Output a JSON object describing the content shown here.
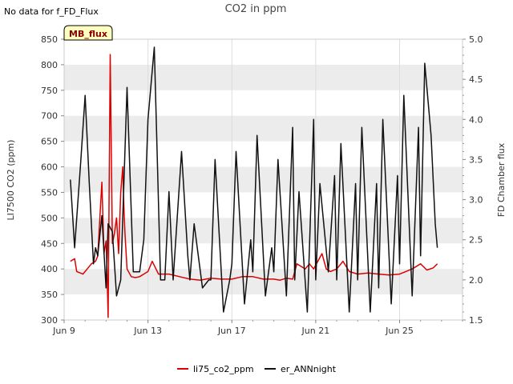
{
  "top_note": "No data for f_FD_Flux",
  "badge_label": "MB_flux",
  "colors": {
    "li75": "#dd0000",
    "er": "#111111",
    "band": "#ececec",
    "badge_fill": "#ffffc0"
  },
  "chart_data": {
    "type": "line",
    "title": "CO2 in ppm",
    "ylabel": "LI7500 CO2 (ppm)",
    "y2label": "FD Chamber flux",
    "ylim": [
      300,
      850
    ],
    "y_ticks": [
      300,
      350,
      400,
      450,
      500,
      550,
      600,
      650,
      700,
      750,
      800,
      850
    ],
    "y2lim": [
      1.5,
      5.0
    ],
    "y2_ticks": [
      "1.5",
      "2.0",
      "2.5",
      "3.0",
      "3.5",
      "4.0",
      "4.5",
      "5.0"
    ],
    "xlim": [
      9,
      28
    ],
    "x_ticks": [
      {
        "x": 9,
        "label": "Jun 9"
      },
      {
        "x": 13,
        "label": "Jun 13"
      },
      {
        "x": 17,
        "label": "Jun 17"
      },
      {
        "x": 21,
        "label": "Jun 21"
      },
      {
        "x": 25,
        "label": "Jun 25"
      }
    ],
    "legend_position": "bottom-center",
    "series": [
      {
        "name": "li75_co2_ppm",
        "axis": "left",
        "x": [
          9.3,
          9.5,
          9.6,
          9.9,
          10.1,
          10.3,
          10.5,
          10.6,
          10.8,
          10.9,
          11.0,
          11.05,
          11.1,
          11.2,
          11.3,
          11.4,
          11.5,
          11.6,
          11.7,
          11.8,
          11.85,
          11.9,
          12.0,
          12.2,
          12.4,
          12.6,
          12.8,
          13.0,
          13.2,
          13.5,
          14.0,
          14.5,
          15.0,
          15.5,
          16.0,
          16.5,
          17.0,
          17.5,
          18.0,
          18.5,
          19.0,
          19.3,
          19.6,
          19.9,
          20.1,
          20.3,
          20.5,
          20.7,
          20.9,
          21.1,
          21.3,
          21.5,
          21.7,
          22.0,
          22.3,
          22.6,
          23.0,
          23.5,
          24.0,
          24.5,
          25.0,
          25.3,
          25.6,
          26.0,
          26.3,
          26.6,
          26.8
        ],
        "y": [
          415,
          420,
          395,
          390,
          400,
          410,
          415,
          425,
          570,
          430,
          455,
          390,
          305,
          820,
          450,
          470,
          500,
          430,
          550,
          600,
          520,
          470,
          400,
          385,
          383,
          385,
          390,
          395,
          415,
          390,
          390,
          385,
          380,
          378,
          382,
          380,
          380,
          385,
          385,
          380,
          380,
          378,
          382,
          380,
          410,
          405,
          400,
          410,
          400,
          415,
          430,
          400,
          395,
          400,
          415,
          395,
          390,
          392,
          390,
          388,
          390,
          395,
          400,
          410,
          398,
          402,
          410
        ]
      },
      {
        "name": "er_ANNnight",
        "axis": "right",
        "x": [
          9.3,
          9.5,
          9.8,
          10.0,
          10.2,
          10.4,
          10.5,
          10.6,
          10.8,
          11.0,
          11.1,
          11.3,
          11.5,
          11.7,
          12.0,
          12.3,
          12.6,
          12.8,
          13.0,
          13.3,
          13.6,
          13.8,
          14.0,
          14.2,
          14.6,
          14.9,
          15.0,
          15.2,
          15.6,
          15.9,
          16.0,
          16.2,
          16.6,
          16.9,
          17.0,
          17.2,
          17.6,
          17.9,
          18.0,
          18.2,
          18.6,
          18.9,
          19.0,
          19.2,
          19.6,
          19.9,
          20.0,
          20.2,
          20.6,
          20.9,
          21.0,
          21.2,
          21.6,
          21.9,
          22.0,
          22.2,
          22.6,
          22.9,
          23.0,
          23.2,
          23.6,
          23.9,
          24.0,
          24.2,
          24.6,
          24.9,
          25.0,
          25.2,
          25.6,
          25.9,
          26.0,
          26.2,
          26.5,
          26.7,
          26.8
        ],
        "y": [
          3.25,
          2.4,
          3.5,
          4.3,
          3.2,
          2.2,
          2.4,
          2.3,
          2.8,
          1.9,
          2.7,
          2.6,
          1.8,
          2.0,
          4.4,
          2.1,
          2.1,
          2.5,
          4.0,
          4.9,
          2.0,
          2.0,
          3.1,
          2.0,
          3.6,
          2.3,
          2.0,
          2.7,
          1.9,
          2.0,
          2.0,
          3.5,
          1.6,
          2.0,
          2.2,
          3.6,
          1.7,
          2.5,
          2.1,
          3.8,
          1.8,
          2.4,
          2.1,
          3.5,
          1.8,
          3.9,
          2.0,
          3.1,
          1.6,
          4.0,
          2.0,
          3.2,
          2.1,
          3.3,
          2.0,
          3.7,
          1.6,
          3.2,
          2.0,
          3.9,
          1.6,
          3.2,
          1.9,
          4.0,
          1.7,
          3.3,
          2.2,
          4.3,
          1.8,
          3.9,
          2.3,
          4.7,
          3.8,
          2.7,
          2.4
        ]
      }
    ]
  }
}
